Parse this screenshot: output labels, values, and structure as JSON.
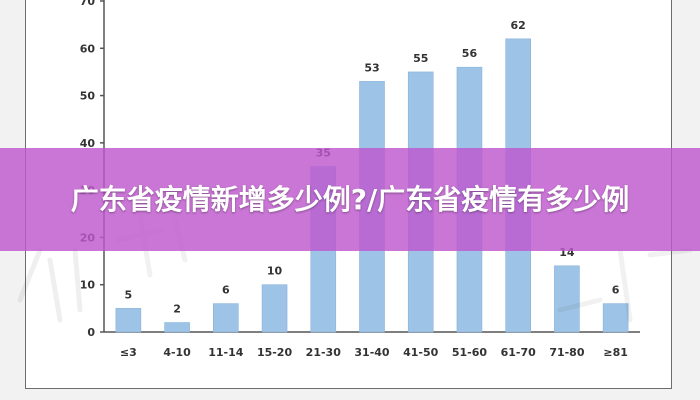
{
  "banner": {
    "title": "广东省疫情新增多少例?/广东省疫情有多少例"
  },
  "colors": {
    "bar": "#9dc3e6",
    "bar_edge": "#8ab3da",
    "axis": "#555555",
    "banner": "#be58cd"
  },
  "chart_data": {
    "type": "bar",
    "categories": [
      "≤3",
      "4-10",
      "11-14",
      "15-20",
      "21-30",
      "31-40",
      "41-50",
      "51-60",
      "61-70",
      "71-80",
      "≥81"
    ],
    "values": [
      5,
      2,
      6,
      10,
      35,
      53,
      55,
      56,
      62,
      14,
      6
    ],
    "data_labels": [
      "5",
      "2",
      "6",
      "10",
      "35",
      "53",
      "55",
      "56",
      "62",
      "14",
      "6"
    ],
    "yticks": [
      0,
      10,
      20,
      30,
      40,
      50,
      60,
      70
    ],
    "ylim": [
      0,
      70
    ],
    "grid": false,
    "legend": "none"
  }
}
